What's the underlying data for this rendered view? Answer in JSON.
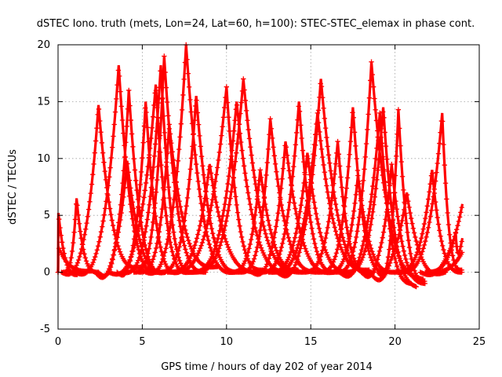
{
  "chart_data": {
    "type": "scatter",
    "title": "dSTEC Iono. truth (mets, Lon=24, Lat=60, h=100): STEC-STEC_elemax in phase cont.",
    "xlabel": "GPS time / hours of day 202 of year 2014",
    "ylabel": "dSTEC  / TECUs",
    "xlim": [
      0,
      25
    ],
    "ylim": [
      -5,
      20
    ],
    "xticks": [
      "0",
      "5",
      "10",
      "15",
      "20",
      "25"
    ],
    "yticks": [
      "-5",
      "0",
      "5",
      "10",
      "15",
      "20"
    ],
    "grid": true,
    "marker": "+",
    "color": "#ff0000",
    "arcs": [
      {
        "start": 0.0,
        "peak_x": 0.0,
        "end": 1.2,
        "peak": 5.5,
        "rise_min": -0.3,
        "end_val": -0.2
      },
      {
        "start": 0.0,
        "peak_x": 0.0,
        "end": 2.0,
        "peak": 2.3,
        "rise_min": 0.0,
        "end_val": 0.1
      },
      {
        "start": 0.3,
        "peak_x": 1.1,
        "end": 2.4,
        "peak": 6.5,
        "rise_min": 0.0,
        "end_val": 0.0
      },
      {
        "start": 0.2,
        "peak_x": 2.4,
        "end": 5.0,
        "peak": 14.7,
        "rise_min": -0.3,
        "end_val": 0.5
      },
      {
        "start": 1.0,
        "peak_x": 3.6,
        "end": 6.0,
        "peak": 18.2,
        "rise_min": -0.3,
        "end_val": 0.0
      },
      {
        "start": 2.2,
        "peak_x": 4.1,
        "end": 6.5,
        "peak": 9.8,
        "rise_min": -0.6,
        "end_val": 0.1
      },
      {
        "start": 2.4,
        "peak_x": 4.2,
        "end": 6.4,
        "peak": 16.0,
        "rise_min": -0.5,
        "end_val": 0.0
      },
      {
        "start": 3.5,
        "peak_x": 5.2,
        "end": 7.2,
        "peak": 15.0,
        "rise_min": -0.4,
        "end_val": 0.0
      },
      {
        "start": 3.0,
        "peak_x": 5.8,
        "end": 7.8,
        "peak": 16.5,
        "rise_min": -0.3,
        "end_val": 0.0
      },
      {
        "start": 3.8,
        "peak_x": 6.1,
        "end": 8.0,
        "peak": 18.2,
        "rise_min": -0.1,
        "end_val": 0.0
      },
      {
        "start": 4.5,
        "peak_x": 6.3,
        "end": 8.8,
        "peak": 19.0,
        "rise_min": 0.0,
        "end_val": 0.0
      },
      {
        "start": 4.8,
        "peak_x": 6.6,
        "end": 9.5,
        "peak": 13.0,
        "rise_min": 0.0,
        "end_val": 0.5
      },
      {
        "start": 5.2,
        "peak_x": 7.6,
        "end": 10.5,
        "peak": 20.0,
        "rise_min": -0.2,
        "end_val": 0.0
      },
      {
        "start": 6.0,
        "peak_x": 8.2,
        "end": 10.8,
        "peak": 15.5,
        "rise_min": 0.0,
        "end_val": 0.0
      },
      {
        "start": 6.5,
        "peak_x": 9.0,
        "end": 12.0,
        "peak": 9.5,
        "rise_min": 0.0,
        "end_val": 0.0
      },
      {
        "start": 6.7,
        "peak_x": 10.0,
        "end": 12.2,
        "peak": 16.3,
        "rise_min": 0.0,
        "end_val": 0.2
      },
      {
        "start": 7.8,
        "peak_x": 10.6,
        "end": 13.8,
        "peak": 15.0,
        "rise_min": 0.0,
        "end_val": 0.0
      },
      {
        "start": 8.0,
        "peak_x": 11.0,
        "end": 14.3,
        "peak": 17.0,
        "rise_min": 0.0,
        "end_val": 0.2
      },
      {
        "start": 10.2,
        "peak_x": 12.0,
        "end": 14.5,
        "peak": 9.0,
        "rise_min": 0.0,
        "end_val": 0.0
      },
      {
        "start": 10.8,
        "peak_x": 12.6,
        "end": 15.5,
        "peak": 13.5,
        "rise_min": 0.0,
        "end_val": 0.0
      },
      {
        "start": 11.5,
        "peak_x": 13.5,
        "end": 16.4,
        "peak": 11.5,
        "rise_min": -0.3,
        "end_val": 0.0
      },
      {
        "start": 12.0,
        "peak_x": 14.3,
        "end": 16.5,
        "peak": 15.0,
        "rise_min": 0.0,
        "end_val": 0.0
      },
      {
        "start": 12.5,
        "peak_x": 14.8,
        "end": 17.4,
        "peak": 10.5,
        "rise_min": 0.0,
        "end_val": 0.0
      },
      {
        "start": 12.7,
        "peak_x": 15.4,
        "end": 18.5,
        "peak": 14.0,
        "rise_min": 0.0,
        "end_val": 0.2
      },
      {
        "start": 13.0,
        "peak_x": 15.6,
        "end": 18.8,
        "peak": 17.0,
        "rise_min": -0.5,
        "end_val": 0.0
      },
      {
        "start": 14.5,
        "peak_x": 16.6,
        "end": 18.5,
        "peak": 11.5,
        "rise_min": 0.0,
        "end_val": 0.0
      },
      {
        "start": 15.5,
        "peak_x": 17.5,
        "end": 19.5,
        "peak": 14.5,
        "rise_min": 0.0,
        "end_val": 0.0
      },
      {
        "start": 16.0,
        "peak_x": 17.8,
        "end": 20.0,
        "peak": 8.5,
        "rise_min": 0.0,
        "end_val": 0.0
      },
      {
        "start": 16.5,
        "peak_x": 18.6,
        "end": 21.7,
        "peak": 18.5,
        "rise_min": 0.0,
        "end_val": -0.6
      },
      {
        "start": 16.7,
        "peak_x": 19.1,
        "end": 21.0,
        "peak": 14.0,
        "rise_min": -0.5,
        "end_val": -1.0
      },
      {
        "start": 17.0,
        "peak_x": 19.3,
        "end": 21.3,
        "peak": 14.5,
        "rise_min": 0.0,
        "end_val": -1.3
      },
      {
        "start": 18.0,
        "peak_x": 19.8,
        "end": 21.8,
        "peak": 9.5,
        "rise_min": -0.5,
        "end_val": -1.0
      },
      {
        "start": 18.5,
        "peak_x": 20.7,
        "end": 23.0,
        "peak": 7.0,
        "rise_min": -0.8,
        "end_val": 0.0
      },
      {
        "start": 19.0,
        "peak_x": 20.2,
        "end": 21.8,
        "peak": 14.3,
        "rise_min": -0.5,
        "end_val": -0.8
      },
      {
        "start": 20.0,
        "peak_x": 22.2,
        "end": 24.0,
        "peak": 9.0,
        "rise_min": 0.0,
        "end_val": 0.0
      },
      {
        "start": 20.3,
        "peak_x": 22.8,
        "end": 24.0,
        "peak": 14.0,
        "rise_min": 0.0,
        "end_val": 0.2
      },
      {
        "start": 21.5,
        "peak_x": 24.0,
        "end": 24.0,
        "peak": 6.0,
        "rise_min": -0.3,
        "end_val": 6.0
      },
      {
        "start": 21.8,
        "peak_x": 23.6,
        "end": 24.0,
        "peak": 3.5,
        "rise_min": 0.0,
        "end_val": 3.0
      },
      {
        "start": 22.0,
        "peak_x": 24.0,
        "end": 24.0,
        "peak": 1.8,
        "rise_min": 0.0,
        "end_val": 1.8
      }
    ]
  }
}
